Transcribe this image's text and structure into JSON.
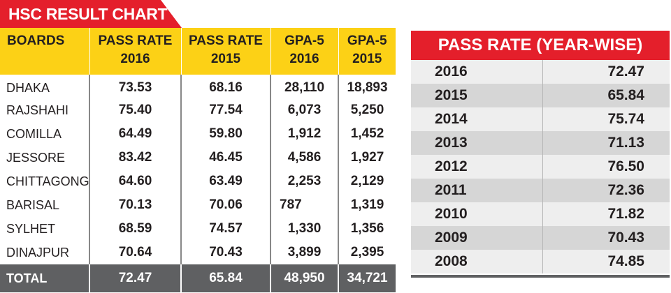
{
  "title": "HSC RESULT CHART",
  "boards_table": {
    "headers": [
      {
        "l1": "BOARDS",
        "l2": ""
      },
      {
        "l1": "PASS RATE",
        "l2": "2016"
      },
      {
        "l1": "PASS RATE",
        "l2": "2015"
      },
      {
        "l1": "GPA-5",
        "l2": "2016"
      },
      {
        "l1": "GPA-5",
        "l2": "2015"
      }
    ],
    "rows": [
      [
        "DHAKA",
        "73.53",
        "68.16",
        "28,110",
        "18,893"
      ],
      [
        "RAJSHAHI",
        "75.40",
        "77.54",
        "6,073",
        "5,250"
      ],
      [
        "COMILLA",
        "64.49",
        "59.80",
        "1,912",
        "1,452"
      ],
      [
        "JESSORE",
        "83.42",
        "46.45",
        "4,586",
        "1,927"
      ],
      [
        "CHITTAGONG",
        "64.60",
        "63.49",
        "2,253",
        "2,129"
      ],
      [
        "BARISAL",
        "70.13",
        "70.06",
        "787",
        "1,319"
      ],
      [
        "SYLHET",
        "68.59",
        "74.57",
        "1,330",
        "1,356"
      ],
      [
        "DINAJPUR",
        "70.64",
        "70.43",
        "3,899",
        "2,395"
      ]
    ],
    "total": [
      "TOTAL",
      "72.47",
      "65.84",
      "48,950",
      "34,721"
    ]
  },
  "pass_rate_yearwise": {
    "title": "PASS RATE (YEAR-WISE)",
    "rows": [
      [
        "2016",
        "72.47"
      ],
      [
        "2015",
        "65.84"
      ],
      [
        "2014",
        "75.74"
      ],
      [
        "2013",
        "71.13"
      ],
      [
        "2012",
        "76.50"
      ],
      [
        "2011",
        "72.36"
      ],
      [
        "2010",
        "71.82"
      ],
      [
        "2009",
        "70.43"
      ],
      [
        "2008",
        "74.85"
      ]
    ]
  },
  "colors": {
    "accent_red": "#e41f2b",
    "header_yellow": "#fcd116",
    "total_gray": "#5f6062"
  }
}
